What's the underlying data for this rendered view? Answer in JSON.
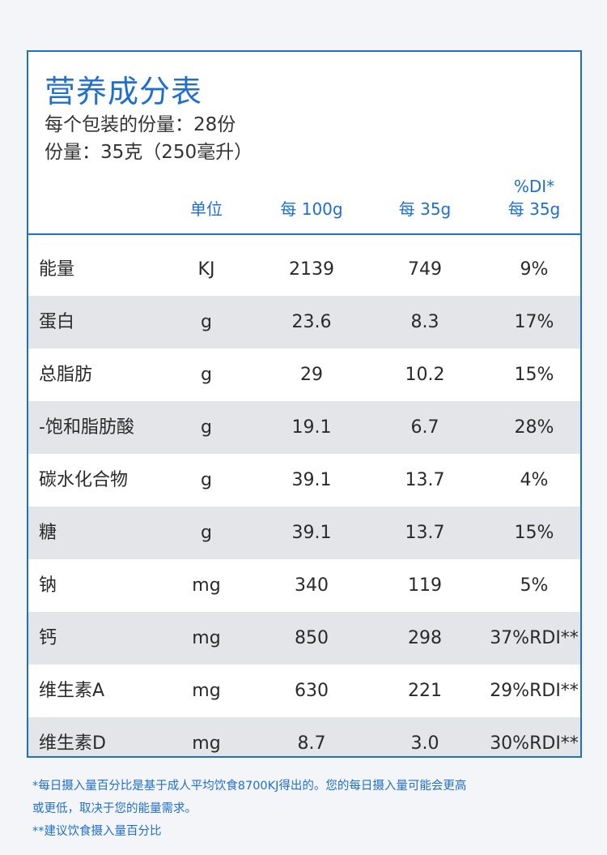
{
  "title": "营养成分表",
  "servings_per_package": "每个包装的份量：28份",
  "serving_size": "份量：35克（250毫升）",
  "columns": {
    "unit": "单位",
    "per_100g": "每 100g",
    "per_35g": "每 35g",
    "rdi_line1": "%DI*",
    "rdi_line2": "每 35g"
  },
  "rows": [
    {
      "name": "能量",
      "unit": "KJ",
      "per_100g": "2139",
      "per_35g": "749",
      "rdi": "9%"
    },
    {
      "name": "蛋白",
      "unit": "g",
      "per_100g": "23.6",
      "per_35g": "8.3",
      "rdi": "17%"
    },
    {
      "name": "总脂肪",
      "unit": "g",
      "per_100g": "29",
      "per_35g": "10.2",
      "rdi": "15%"
    },
    {
      "name": "-饱和脂肪酸",
      "unit": "g",
      "per_100g": "19.1",
      "per_35g": "6.7",
      "rdi": "28%"
    },
    {
      "name": "碳水化合物",
      "unit": "g",
      "per_100g": "39.1",
      "per_35g": "13.7",
      "rdi": "4%"
    },
    {
      "name": "糖",
      "unit": "g",
      "per_100g": "39.1",
      "per_35g": "13.7",
      "rdi": "15%"
    },
    {
      "name": "钠",
      "unit": "mg",
      "per_100g": "340",
      "per_35g": "119",
      "rdi": "5%"
    },
    {
      "name": "钙",
      "unit": "mg",
      "per_100g": "850",
      "per_35g": "298",
      "rdi": "37%RDI**"
    },
    {
      "name": "维生素A",
      "unit": "mg",
      "per_100g": "630",
      "per_35g": "221",
      "rdi": "29%RDI**"
    },
    {
      "name": "维生素D",
      "unit": "mg",
      "per_100g": "8.7",
      "per_35g": "3.0",
      "rdi": "30%RDI**"
    }
  ],
  "footnotes": {
    "line1": "*每日摄入量百分比是基于成人平均饮食8700KJ得出的。您的每日摄入量可能会更高",
    "line2": "或更低，取决于您的能量需求。",
    "line3": "**建议饮食摄入量百分比"
  },
  "colors": {
    "accent": "#1f6fd0",
    "row_alt": "#e4e5e8"
  }
}
